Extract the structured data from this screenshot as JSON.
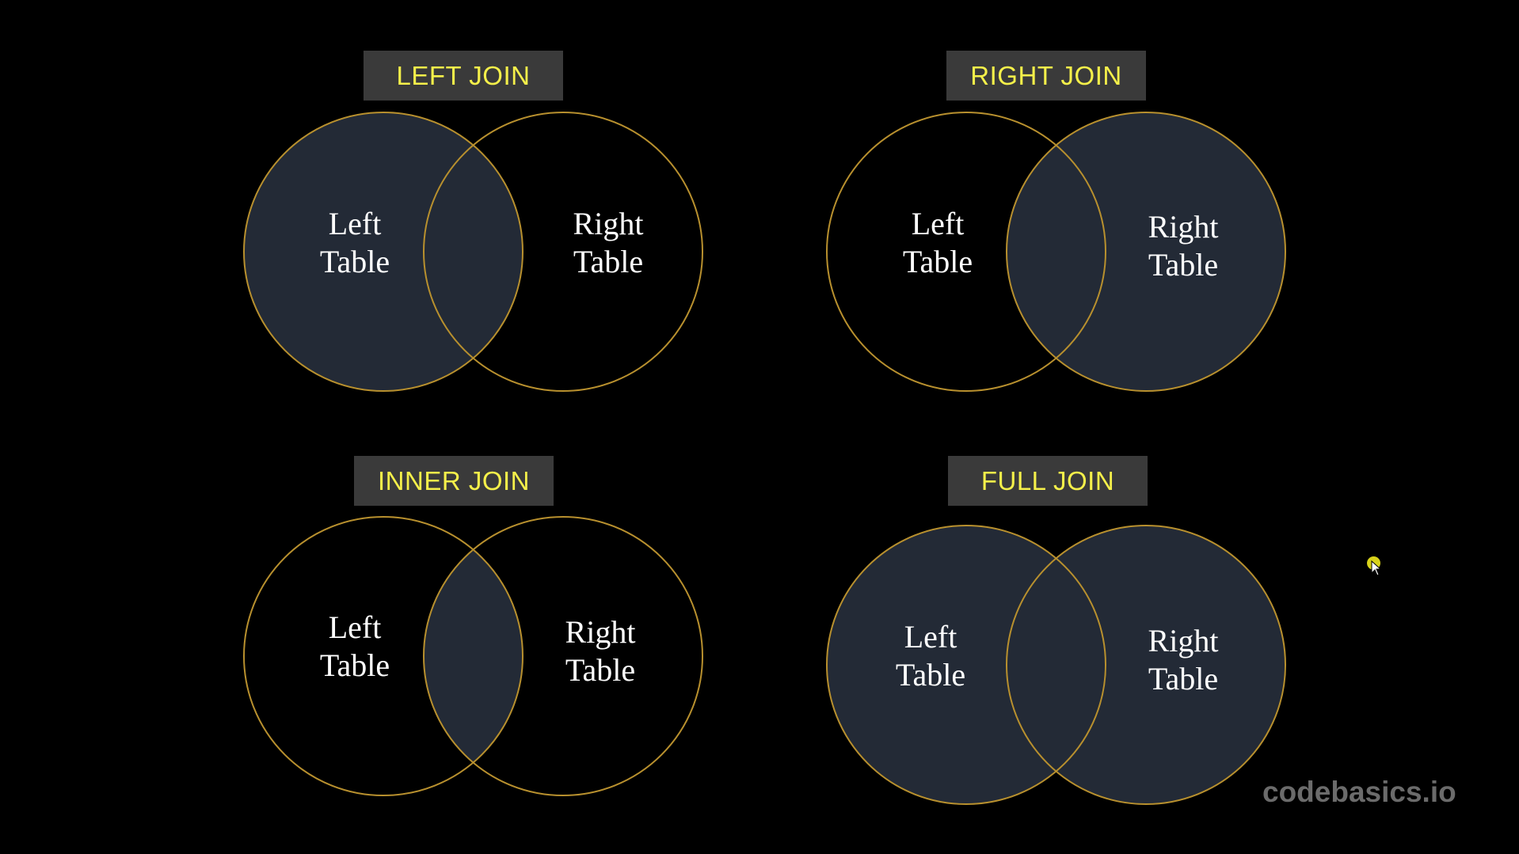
{
  "colors": {
    "background": "#000000",
    "title_box": "#3a3a3a",
    "title_text": "#f5f04a",
    "circle_stroke": "#b8902e",
    "highlight_fill": "#232a36",
    "label_text": "#ffffff",
    "watermark": "#6b6b6b"
  },
  "diagrams": [
    {
      "title": "LEFT JOIN",
      "left_label": [
        "Left",
        "Table"
      ],
      "right_label": [
        "Right",
        "Table"
      ],
      "highlight": {
        "left_only": true,
        "intersection": true,
        "right_only": false
      }
    },
    {
      "title": "RIGHT JOIN",
      "left_label": [
        "Left",
        "Table"
      ],
      "right_label": [
        "Right",
        "Table"
      ],
      "highlight": {
        "left_only": false,
        "intersection": true,
        "right_only": true
      }
    },
    {
      "title": "INNER JOIN",
      "left_label": [
        "Left",
        "Table"
      ],
      "right_label": [
        "Right",
        "Table"
      ],
      "highlight": {
        "left_only": false,
        "intersection": true,
        "right_only": false
      }
    },
    {
      "title": "FULL JOIN",
      "left_label": [
        "Left",
        "Table"
      ],
      "right_label": [
        "Right",
        "Table"
      ],
      "highlight": {
        "left_only": true,
        "intersection": true,
        "right_only": true
      }
    }
  ],
  "watermark": "codebasics.io",
  "cursor_icon": "mouse-pointer-icon"
}
